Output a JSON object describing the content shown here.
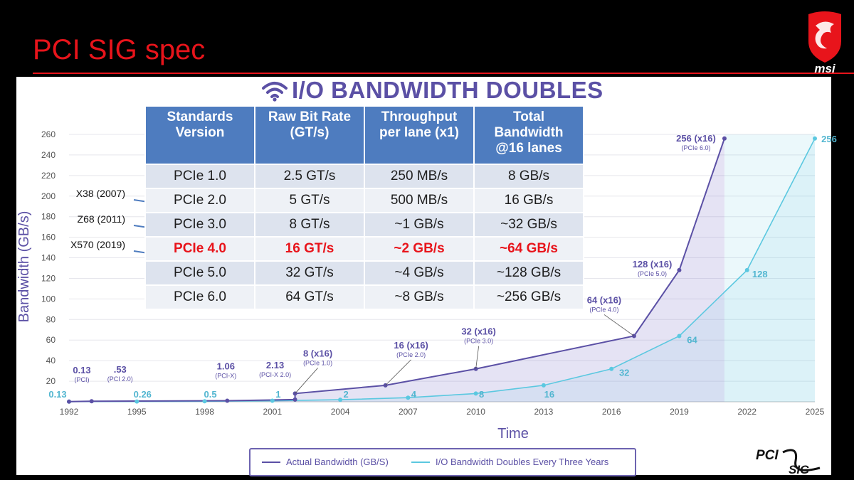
{
  "slide": {
    "title": "PCI SIG spec",
    "brand_logo": "msi",
    "footer_logo": {
      "line1": "PCI",
      "line2": "SIG"
    }
  },
  "heading": {
    "icon": "wifi-icon",
    "text": "I/O BANDWIDTH DOUBLES"
  },
  "table": {
    "headers": [
      "Standards Version",
      "Raw Bit Rate (GT/s)",
      "Throughput per lane (x1)",
      "Total Bandwidth @16 lanes"
    ],
    "rows": [
      [
        "PCIe 1.0",
        "2.5 GT/s",
        "250 MB/s",
        "8 GB/s"
      ],
      [
        "PCIe 2.0",
        "5 GT/s",
        "500 MB/s",
        "16 GB/s"
      ],
      [
        "PCIe 3.0",
        "8 GT/s",
        "~1 GB/s",
        "~32 GB/s"
      ],
      [
        "PCIe 4.0",
        "16 GT/s",
        "~2 GB/s",
        "~64 GB/s"
      ],
      [
        "PCIe 5.0",
        "32 GT/s",
        "~4 GB/s",
        "~128 GB/s"
      ],
      [
        "PCIe 6.0",
        "64 GT/s",
        "~8 GB/s",
        "~256 GB/s"
      ]
    ],
    "highlight_row": 3
  },
  "annotations": [
    {
      "text": "X38 (2007)",
      "row": 1
    },
    {
      "text": "Z68 (2011)",
      "row": 2
    },
    {
      "text": "X570 (2019)",
      "row": 3
    }
  ],
  "colors": {
    "title_red": "#e8141b",
    "actual": "#5b50a5",
    "doubling": "#5bc8e0",
    "header_blue": "#4e7cbf"
  },
  "chart_data": {
    "type": "line",
    "title": "I/O BANDWIDTH DOUBLES",
    "xlabel": "Time",
    "ylabel": "Bandwidth (GB/s)",
    "xlim": [
      1992,
      2025
    ],
    "ylim": [
      0,
      260
    ],
    "xticks": [
      1992,
      1995,
      1998,
      2001,
      2004,
      2007,
      2010,
      2013,
      2016,
      2019,
      2022,
      2025
    ],
    "yticks": [
      20,
      40,
      60,
      80,
      100,
      120,
      140,
      160,
      180,
      200,
      220,
      240,
      260
    ],
    "grid": true,
    "legend": "bottom",
    "series": [
      {
        "name": "Actual Bandwidth (GB/S)",
        "points": [
          {
            "x": 1992,
            "y": 0.13,
            "label": "0.13",
            "sub": "(PCI)"
          },
          {
            "x": 1993,
            "y": 0.53,
            "label": ".53",
            "sub": "(PCI 2.0)"
          },
          {
            "x": 1999,
            "y": 1.06,
            "label": "1.06",
            "sub": "(PCI-X)"
          },
          {
            "x": 2002,
            "y": 2.13,
            "label": "2.13",
            "sub": "(PCI-X 2.0)"
          },
          {
            "x": 2002,
            "y": 8,
            "label": "8 (x16)",
            "sub": "(PCIe 1.0)"
          },
          {
            "x": 2006,
            "y": 16,
            "label": "16 (x16)",
            "sub": "(PCIe 2.0)"
          },
          {
            "x": 2010,
            "y": 32,
            "label": "32 (x16)",
            "sub": "(PCIe 3.0)"
          },
          {
            "x": 2017,
            "y": 64,
            "label": "64 (x16)",
            "sub": "(PCIe 4.0)"
          },
          {
            "x": 2019,
            "y": 128,
            "label": "128 (x16)",
            "sub": "(PCIe 5.0)"
          },
          {
            "x": 2021,
            "y": 256,
            "label": "256 (x16)",
            "sub": "(PCIe 6.0)"
          }
        ]
      },
      {
        "name": "I/O Bandwidth Doubles Every Three Years",
        "points": [
          {
            "x": 1992,
            "y": 0.13,
            "label": "0.13"
          },
          {
            "x": 1995,
            "y": 0.26,
            "label": "0.26"
          },
          {
            "x": 1998,
            "y": 0.5,
            "label": "0.5"
          },
          {
            "x": 2001,
            "y": 1,
            "label": "1"
          },
          {
            "x": 2004,
            "y": 2,
            "label": "2"
          },
          {
            "x": 2007,
            "y": 4,
            "label": "4"
          },
          {
            "x": 2010,
            "y": 8,
            "label": "8"
          },
          {
            "x": 2013,
            "y": 16,
            "label": "16"
          },
          {
            "x": 2016,
            "y": 32,
            "label": "32"
          },
          {
            "x": 2019,
            "y": 64,
            "label": "64"
          },
          {
            "x": 2022,
            "y": 128,
            "label": "128"
          },
          {
            "x": 2025,
            "y": 256,
            "label": "256"
          }
        ]
      }
    ]
  }
}
